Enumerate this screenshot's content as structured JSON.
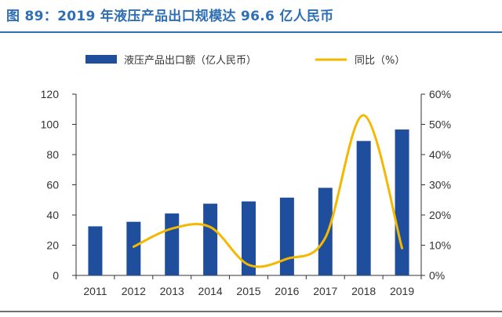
{
  "title": "图 89：2019 年液压产品出口规模达 96.6 亿人民币",
  "chart_data": {
    "type": "bar+line",
    "categories": [
      "2011",
      "2012",
      "2013",
      "2014",
      "2015",
      "2016",
      "2017",
      "2018",
      "2019"
    ],
    "series": [
      {
        "name": "液压产品出口额（亿人民币）",
        "type": "bar",
        "axis": "left",
        "values": [
          32.5,
          35.5,
          41,
          47.5,
          49,
          51.5,
          58,
          89,
          96.6
        ]
      },
      {
        "name": "同比（%）",
        "type": "line",
        "axis": "right",
        "values": [
          null,
          9.5,
          15.5,
          16,
          3.5,
          5.5,
          12.5,
          53,
          9
        ]
      }
    ],
    "left_axis": {
      "min": 0,
      "max": 120,
      "step": 20,
      "tick_labels": [
        "0",
        "20",
        "40",
        "60",
        "80",
        "100",
        "120"
      ]
    },
    "right_axis": {
      "min": 0,
      "max": 60,
      "step": 10,
      "tick_labels": [
        "0%",
        "10%",
        "20%",
        "30%",
        "40%",
        "50%",
        "60%"
      ]
    },
    "legend_position": "top",
    "grid": false,
    "colors": {
      "bar": "#1f4e9c",
      "line": "#f5b800",
      "title": "#2f6fb4",
      "axis": "#333333"
    }
  }
}
